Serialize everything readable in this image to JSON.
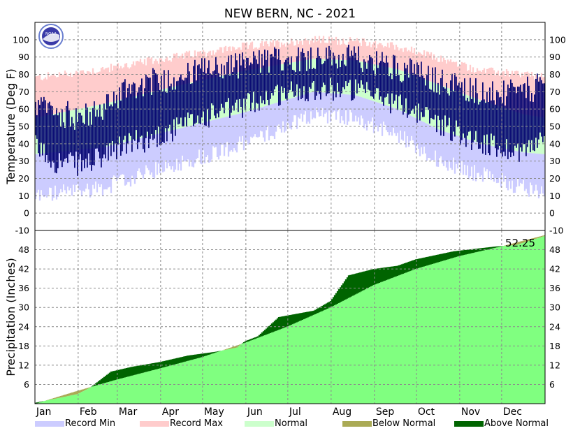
{
  "chart_data": [
    {
      "type": "area",
      "title": "NEW BERN, NC - 2021",
      "ylabel": "Temperature (Deg F)",
      "ylim": [
        -10,
        110
      ],
      "y_ticks": [
        100,
        90,
        80,
        70,
        60,
        50,
        40,
        30,
        20,
        10,
        0,
        -10
      ],
      "months": [
        "Jan",
        "Feb",
        "Mar",
        "Apr",
        "May",
        "Jun",
        "Jul",
        "Aug",
        "Sep",
        "Oct",
        "Nov",
        "Dec"
      ],
      "grid": true,
      "series_colors": {
        "record_min": "#ccccff",
        "record_max": "#ffcccc",
        "normal": "#ccffcc",
        "observed": "#000070"
      },
      "normal_high_anchors": [
        [
          1,
          55
        ],
        [
          50,
          63
        ],
        [
          100,
          73
        ],
        [
          150,
          82
        ],
        [
          200,
          89
        ],
        [
          230,
          88
        ],
        [
          260,
          83
        ],
        [
          290,
          74
        ],
        [
          320,
          65
        ],
        [
          350,
          57
        ],
        [
          365,
          55
        ]
      ],
      "normal_low_anchors": [
        [
          1,
          34
        ],
        [
          50,
          38
        ],
        [
          100,
          48
        ],
        [
          150,
          58
        ],
        [
          200,
          70
        ],
        [
          230,
          68
        ],
        [
          260,
          60
        ],
        [
          290,
          48
        ],
        [
          320,
          40
        ],
        [
          350,
          35
        ],
        [
          365,
          34
        ]
      ],
      "record_high_anchors": [
        [
          1,
          78
        ],
        [
          50,
          83
        ],
        [
          100,
          90
        ],
        [
          150,
          96
        ],
        [
          200,
          100
        ],
        [
          230,
          99
        ],
        [
          260,
          96
        ],
        [
          290,
          89
        ],
        [
          320,
          82
        ],
        [
          350,
          80
        ],
        [
          365,
          78
        ]
      ],
      "record_low_anchors": [
        [
          1,
          10
        ],
        [
          50,
          15
        ],
        [
          100,
          28
        ],
        [
          150,
          40
        ],
        [
          200,
          57
        ],
        [
          230,
          55
        ],
        [
          260,
          45
        ],
        [
          290,
          30
        ],
        [
          320,
          22
        ],
        [
          350,
          15
        ],
        [
          365,
          12
        ]
      ],
      "observed_high_anchors": [
        [
          1,
          62
        ],
        [
          15,
          58
        ],
        [
          35,
          55
        ],
        [
          50,
          60
        ],
        [
          65,
          72
        ],
        [
          80,
          75
        ],
        [
          100,
          78
        ],
        [
          120,
          82
        ],
        [
          150,
          86
        ],
        [
          170,
          88
        ],
        [
          200,
          90
        ],
        [
          230,
          89
        ],
        [
          250,
          86
        ],
        [
          270,
          82
        ],
        [
          290,
          76
        ],
        [
          310,
          72
        ],
        [
          330,
          68
        ],
        [
          350,
          70
        ],
        [
          365,
          74
        ]
      ],
      "observed_low_anchors": [
        [
          1,
          38
        ],
        [
          15,
          30
        ],
        [
          35,
          28
        ],
        [
          50,
          32
        ],
        [
          65,
          40
        ],
        [
          80,
          42
        ],
        [
          100,
          48
        ],
        [
          120,
          55
        ],
        [
          150,
          62
        ],
        [
          170,
          68
        ],
        [
          200,
          72
        ],
        [
          230,
          71
        ],
        [
          250,
          66
        ],
        [
          270,
          60
        ],
        [
          290,
          52
        ],
        [
          310,
          44
        ],
        [
          330,
          38
        ],
        [
          350,
          36
        ],
        [
          365,
          42
        ]
      ]
    },
    {
      "type": "area",
      "ylabel": "Precipitation (Inches)",
      "ylim": [
        0,
        54
      ],
      "y_ticks": [
        48,
        42,
        36,
        30,
        24,
        18,
        12,
        6
      ],
      "total_label": "52.25",
      "series_colors": {
        "normal": "#80ff80",
        "below_normal": "#aaaa55",
        "above_normal": "#006400"
      },
      "normal_cumulative_anchors": [
        [
          1,
          0
        ],
        [
          31,
          4
        ],
        [
          59,
          7.5
        ],
        [
          90,
          11
        ],
        [
          120,
          14.5
        ],
        [
          151,
          19
        ],
        [
          181,
          24
        ],
        [
          212,
          30
        ],
        [
          243,
          37
        ],
        [
          273,
          42
        ],
        [
          304,
          46
        ],
        [
          334,
          49
        ],
        [
          365,
          52.5
        ]
      ],
      "observed_cumulative_anchors": [
        [
          1,
          0.3
        ],
        [
          20,
          2
        ],
        [
          31,
          3
        ],
        [
          40,
          5
        ],
        [
          55,
          10
        ],
        [
          70,
          11.5
        ],
        [
          90,
          13
        ],
        [
          110,
          15
        ],
        [
          130,
          16.2
        ],
        [
          145,
          17.5
        ],
        [
          151,
          19.5
        ],
        [
          160,
          21
        ],
        [
          175,
          27
        ],
        [
          200,
          29
        ],
        [
          212,
          32
        ],
        [
          225,
          40
        ],
        [
          243,
          42
        ],
        [
          260,
          43
        ],
        [
          273,
          45
        ],
        [
          300,
          47.5
        ],
        [
          330,
          49
        ],
        [
          345,
          49.5
        ],
        [
          365,
          52.25
        ]
      ],
      "x_labels": [
        "Jan",
        "Feb",
        "Mar",
        "Apr",
        "May",
        "Jun",
        "Jul",
        "Aug",
        "Sep",
        "Oct",
        "Nov",
        "Dec"
      ]
    }
  ],
  "legend": [
    {
      "label": "Record Min",
      "color": "#ccccff"
    },
    {
      "label": "Record Max",
      "color": "#ffcccc"
    },
    {
      "label": "Normal",
      "color": "#ccffcc"
    },
    {
      "label": "Below Normal",
      "color": "#aaaa55"
    },
    {
      "label": "Above Normal",
      "color": "#006400"
    }
  ],
  "logo_text": "NOAA"
}
